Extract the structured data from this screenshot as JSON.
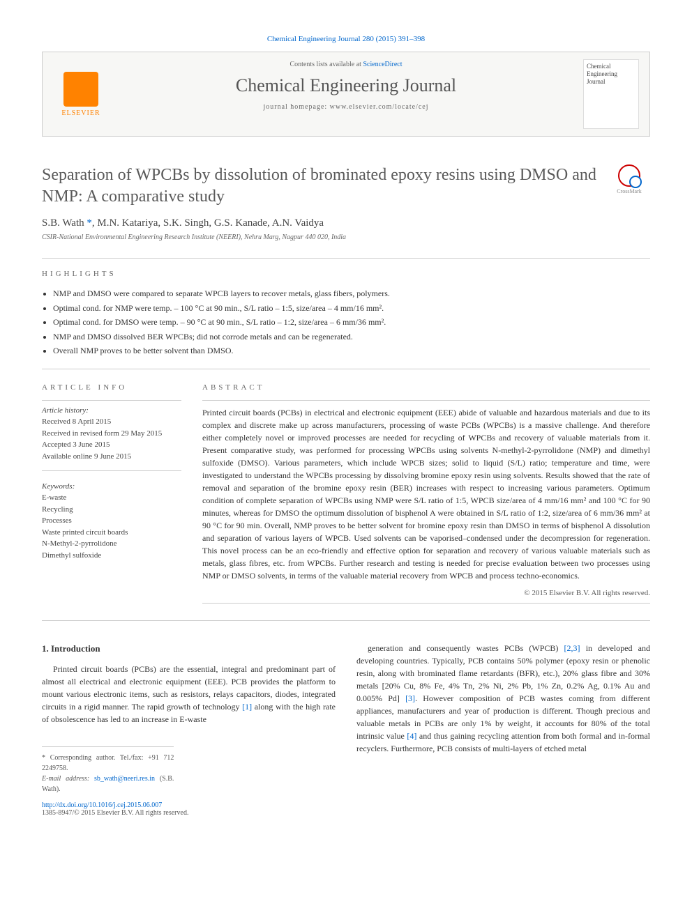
{
  "top_reference": "Chemical Engineering Journal 280 (2015) 391–398",
  "header": {
    "contents_text": "Contents lists available at ",
    "contents_link": "ScienceDirect",
    "journal_name": "Chemical Engineering Journal",
    "homepage_label": "journal homepage: www.elsevier.com/locate/cej",
    "publisher": "ELSEVIER",
    "cover_text": "Chemical Engineering Journal"
  },
  "article": {
    "title": "Separation of WPCBs by dissolution of brominated epoxy resins using DMSO and NMP: A comparative study",
    "crossmark_label": "CrossMark",
    "authors_html": "S.B. Wath *, M.N. Katariya, S.K. Singh, G.S. Kanade, A.N. Vaidya",
    "affiliation": "CSIR-National Environmental Engineering Research Institute (NEERI), Nehru Marg, Nagpur 440 020, India"
  },
  "highlights": {
    "label": "HIGHLIGHTS",
    "items": [
      "NMP and DMSO were compared to separate WPCB layers to recover metals, glass fibers, polymers.",
      "Optimal cond. for NMP were temp. – 100 °C at 90 min., S/L ratio – 1:5, size/area – 4 mm/16 mm².",
      "Optimal cond. for DMSO were temp. – 90 °C at 90 min., S/L ratio – 1:2, size/area – 6 mm/36 mm².",
      "NMP and DMSO dissolved BER WPCBs; did not corrode metals and can be regenerated.",
      "Overall NMP proves to be better solvent than DMSO."
    ]
  },
  "article_info": {
    "label": "ARTICLE INFO",
    "history_label": "Article history:",
    "history": [
      "Received 8 April 2015",
      "Received in revised form 29 May 2015",
      "Accepted 3 June 2015",
      "Available online 9 June 2015"
    ],
    "keywords_label": "Keywords:",
    "keywords": [
      "E-waste",
      "Recycling",
      "Processes",
      "Waste printed circuit boards",
      "N-Methyl-2-pyrrolidone",
      "Dimethyl sulfoxide"
    ]
  },
  "abstract": {
    "label": "ABSTRACT",
    "text": "Printed circuit boards (PCBs) in electrical and electronic equipment (EEE) abide of valuable and hazardous materials and due to its complex and discrete make up across manufacturers, processing of waste PCBs (WPCBs) is a massive challenge. And therefore either completely novel or improved processes are needed for recycling of WPCBs and recovery of valuable materials from it. Present comparative study, was performed for processing WPCBs using solvents N-methyl-2-pyrrolidone (NMP) and dimethyl sulfoxide (DMSO). Various parameters, which include WPCB sizes; solid to liquid (S/L) ratio; temperature and time, were investigated to understand the WPCBs processing by dissolving bromine epoxy resin using solvents. Results showed that the rate of removal and separation of the bromine epoxy resin (BER) increases with respect to increasing various parameters. Optimum condition of complete separation of WPCBs using NMP were S/L ratio of 1:5, WPCB size/area of 4 mm/16 mm² and 100 °C for 90 minutes, whereas for DMSO the optimum dissolution of bisphenol A were obtained in S/L ratio of 1:2, size/area of 6 mm/36 mm² at 90 °C for 90 min. Overall, NMP proves to be better solvent for bromine epoxy resin than DMSO in terms of bisphenol A dissolution and separation of various layers of WPCB. Used solvents can be vaporised–condensed under the decompression for regeneration. This novel process can be an eco-friendly and effective option for separation and recovery of various valuable materials such as metals, glass fibres, etc. from WPCBs. Further research and testing is needed for precise evaluation between two processes using NMP or DMSO solvents, in terms of the valuable material recovery from WPCB and process techno-economics.",
    "copyright": "© 2015 Elsevier B.V. All rights reserved."
  },
  "body": {
    "heading": "1. Introduction",
    "col1": "Printed circuit boards (PCBs) are the essential, integral and predominant part of almost all electrical and electronic equipment (EEE). PCB provides the platform to mount various electronic items, such as resistors, relays capacitors, diodes, integrated circuits in a rigid manner. The rapid growth of technology [1] along with the high rate of obsolescence has led to an increase in E-waste",
    "col2": "generation and consequently wastes PCBs (WPCB) [2,3] in developed and developing countries. Typically, PCB contains 50% polymer (epoxy resin or phenolic resin, along with brominated flame retardants (BFR), etc.), 20% glass fibre and 30% metals [20% Cu, 8% Fe, 4% Tn, 2% Ni, 2% Pb, 1% Zn, 0.2% Ag, 0.1% Au and 0.005% Pd] [3]. However composition of PCB wastes coming from different appliances, manufacturers and year of production is different. Though precious and valuable metals in PCBs are only 1% by weight, it accounts for 80% of the total intrinsic value [4] and thus gaining recycling attention from both formal and in-formal recyclers. Furthermore, PCB consists of multi-layers of etched metal"
  },
  "footnotes": {
    "corr_label": "* Corresponding author. Tel./fax: +91 712 2249758.",
    "email_label": "E-mail address: ",
    "email": "sb_wath@neeri.res.in",
    "email_name": " (S.B. Wath)."
  },
  "doi": {
    "url_label": "http://dx.doi.org/10.1016/j.cej.2015.06.007",
    "issn_line": "1385-8947/© 2015 Elsevier B.V. All rights reserved."
  },
  "colors": {
    "link": "#0066cc",
    "elsevier_orange": "#ff8200",
    "text_gray": "#5a5a5a",
    "border": "#cccccc"
  }
}
